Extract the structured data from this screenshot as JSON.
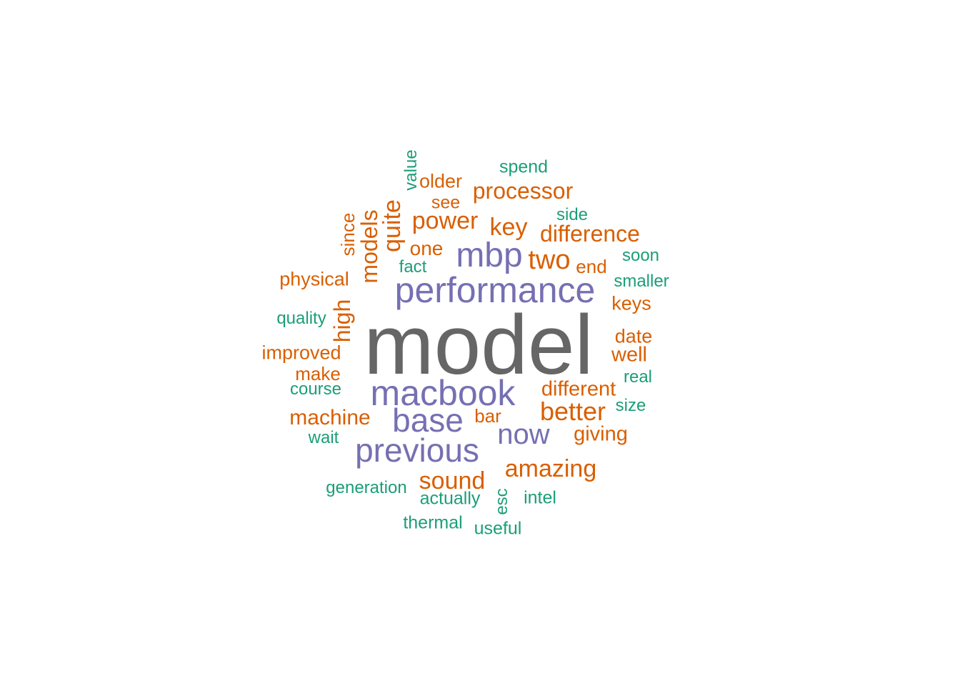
{
  "chart_data": {
    "type": "wordcloud",
    "palette": {
      "top": "#666666",
      "high": "#7570b3",
      "mid": "#d95f02",
      "low": "#1b9e77"
    },
    "words": [
      {
        "text": "model",
        "group": "top"
      },
      {
        "text": "performance",
        "group": "high"
      },
      {
        "text": "macbook",
        "group": "high"
      },
      {
        "text": "mbp",
        "group": "high"
      },
      {
        "text": "previous",
        "group": "high"
      },
      {
        "text": "base",
        "group": "high"
      },
      {
        "text": "now",
        "group": "high"
      },
      {
        "text": "processor",
        "group": "mid"
      },
      {
        "text": "power",
        "group": "mid"
      },
      {
        "text": "key",
        "group": "mid"
      },
      {
        "text": "difference",
        "group": "mid"
      },
      {
        "text": "two",
        "group": "mid"
      },
      {
        "text": "quite",
        "group": "mid"
      },
      {
        "text": "models",
        "group": "mid"
      },
      {
        "text": "high",
        "group": "mid"
      },
      {
        "text": "better",
        "group": "mid"
      },
      {
        "text": "different",
        "group": "mid"
      },
      {
        "text": "amazing",
        "group": "mid"
      },
      {
        "text": "sound",
        "group": "mid"
      },
      {
        "text": "machine",
        "group": "mid"
      },
      {
        "text": "giving",
        "group": "mid"
      },
      {
        "text": "one",
        "group": "mid"
      },
      {
        "text": "since",
        "group": "mid"
      },
      {
        "text": "older",
        "group": "mid"
      },
      {
        "text": "see",
        "group": "mid"
      },
      {
        "text": "end",
        "group": "mid"
      },
      {
        "text": "keys",
        "group": "mid"
      },
      {
        "text": "date",
        "group": "mid"
      },
      {
        "text": "well",
        "group": "mid"
      },
      {
        "text": "physical",
        "group": "mid"
      },
      {
        "text": "improved",
        "group": "mid"
      },
      {
        "text": "make",
        "group": "mid"
      },
      {
        "text": "bar",
        "group": "mid"
      },
      {
        "text": "value",
        "group": "low"
      },
      {
        "text": "spend",
        "group": "low"
      },
      {
        "text": "side",
        "group": "low"
      },
      {
        "text": "soon",
        "group": "low"
      },
      {
        "text": "smaller",
        "group": "low"
      },
      {
        "text": "fact",
        "group": "low"
      },
      {
        "text": "quality",
        "group": "low"
      },
      {
        "text": "real",
        "group": "low"
      },
      {
        "text": "course",
        "group": "low"
      },
      {
        "text": "size",
        "group": "low"
      },
      {
        "text": "wait",
        "group": "low"
      },
      {
        "text": "generation",
        "group": "low"
      },
      {
        "text": "actually",
        "group": "low"
      },
      {
        "text": "esc",
        "group": "low"
      },
      {
        "text": "intel",
        "group": "low"
      },
      {
        "text": "thermal",
        "group": "low"
      },
      {
        "text": "useful",
        "group": "low"
      }
    ]
  }
}
